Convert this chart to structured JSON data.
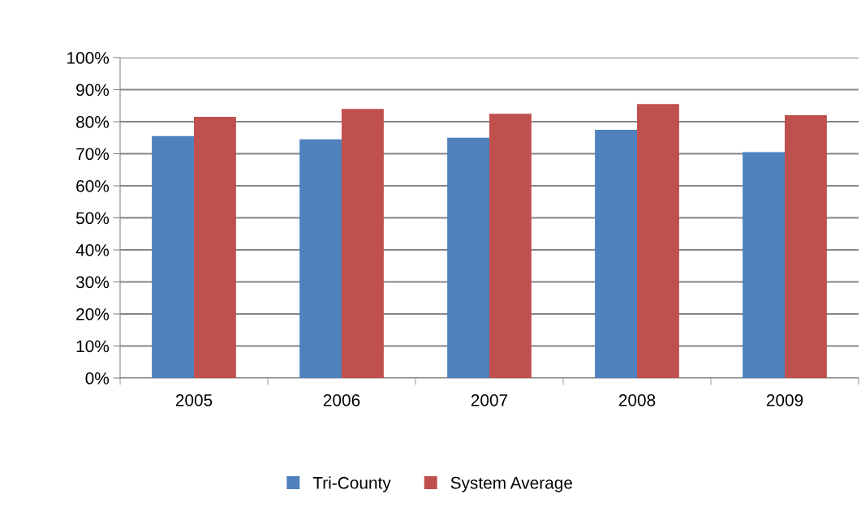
{
  "chart_data": {
    "type": "bar",
    "categories": [
      "2005",
      "2006",
      "2007",
      "2008",
      "2009"
    ],
    "series": [
      {
        "name": "Tri-County",
        "color": "#4f81bd",
        "values": [
          75.5,
          74.5,
          75,
          77.5,
          70.5
        ]
      },
      {
        "name": "System Average",
        "color": "#c0504d",
        "values": [
          81.5,
          84,
          82.5,
          85.5,
          82
        ]
      }
    ],
    "ylim": [
      0,
      100
    ],
    "yticks": [
      {
        "value": 0,
        "label": "0%"
      },
      {
        "value": 10,
        "label": "10%"
      },
      {
        "value": 20,
        "label": "20%"
      },
      {
        "value": 30,
        "label": "30%"
      },
      {
        "value": 40,
        "label": "40%"
      },
      {
        "value": 50,
        "label": "50%"
      },
      {
        "value": 60,
        "label": "60%"
      },
      {
        "value": 70,
        "label": "70%"
      },
      {
        "value": 80,
        "label": "80%"
      },
      {
        "value": 90,
        "label": "90%"
      },
      {
        "value": 100,
        "label": "100%"
      }
    ],
    "grid": "y",
    "legend": "bottom"
  }
}
